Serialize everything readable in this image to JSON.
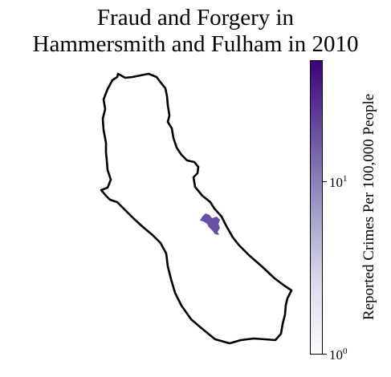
{
  "title": {
    "line1": "Fraud and Forgery in",
    "line2": "Hammersmith and Fulham in 2010"
  },
  "colorbar": {
    "label": "Reported Crimes Per 100,000 People",
    "scale": "log",
    "range": [
      1,
      50
    ],
    "ticks": [
      {
        "base": "10",
        "exp": "1",
        "value": 10
      },
      {
        "base": "10",
        "exp": "0",
        "value": 1
      }
    ],
    "colors": [
      "#fcfbfd",
      "#dadaeb",
      "#9e9ac8",
      "#6a51a3",
      "#3f007d"
    ]
  },
  "map": {
    "borough": "Hammersmith and Fulham",
    "highlighted_area": {
      "level": 30,
      "color": "#6a4ea8"
    },
    "outline_color": "#000000"
  }
}
